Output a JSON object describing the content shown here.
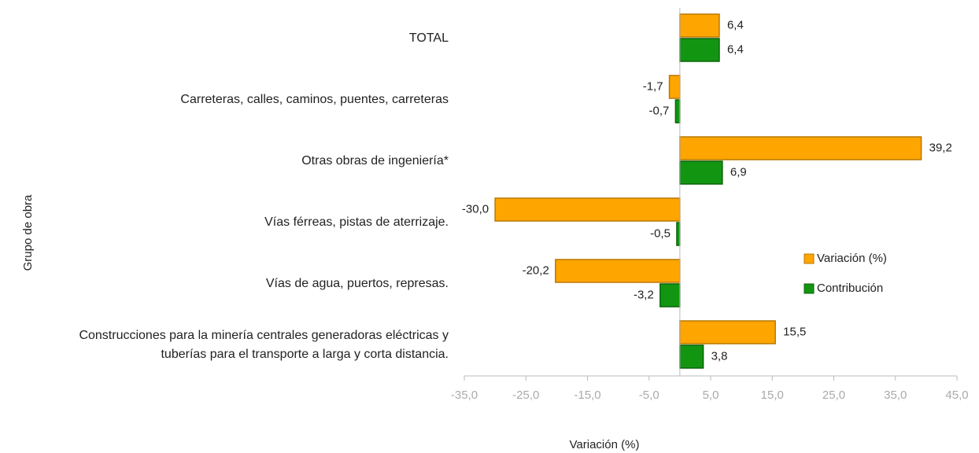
{
  "chart_data": {
    "type": "hbar",
    "x_label": "Variación (%)",
    "y_label": "Grupo de obra",
    "categories": [
      "TOTAL",
      "Carreteras, calles, caminos, puentes, carreteras",
      "Otras obras de ingeniería*",
      "Vías férreas, pistas de aterrizaje.",
      "Vías de agua, puertos, represas.",
      "Construcciones para la minería centrales generadoras eléctricas y\ntuberías para el transporte a larga y corta distancia."
    ],
    "series": [
      {
        "name": "Variación (%)",
        "color": "#ffa500",
        "values": [
          6.4,
          -1.7,
          39.2,
          -30.0,
          -20.2,
          15.5
        ],
        "value_labels": [
          "6,4",
          "-1,7",
          "39,2",
          "-30,0",
          "-20,2",
          "15,5"
        ]
      },
      {
        "name": "Contribución",
        "color": "#129612",
        "values": [
          6.4,
          -0.7,
          6.9,
          -0.5,
          -3.2,
          3.8
        ],
        "value_labels": [
          "6,4",
          "-0,7",
          "6,9",
          "-0,5",
          "-3,2",
          "3,8"
        ]
      }
    ],
    "xlim": [
      -35,
      45
    ],
    "xticks": [
      {
        "value": -35,
        "label": "-35,0"
      },
      {
        "value": -25,
        "label": "-25,0"
      },
      {
        "value": -15,
        "label": "-15,0"
      },
      {
        "value": -5,
        "label": "-5,0"
      },
      {
        "value": 5,
        "label": "5,0"
      },
      {
        "value": 15,
        "label": "15,0"
      },
      {
        "value": 25,
        "label": "25,0"
      },
      {
        "value": 35,
        "label": "35,0"
      },
      {
        "value": 45,
        "label": "45,0"
      }
    ],
    "legend": "right"
  }
}
